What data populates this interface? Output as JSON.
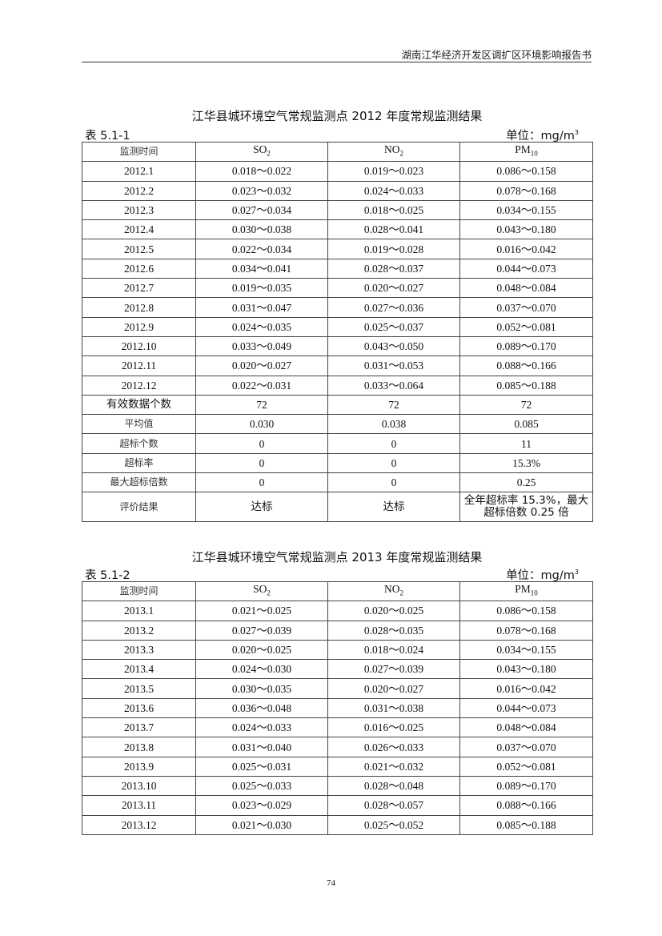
{
  "header": {
    "doc_title": "湖南江华经济开发区调扩区环境影响报告书"
  },
  "tables": [
    {
      "title": "江华县城环境空气常规监测点 2012 年度常规监测结果",
      "number": "表 5.1-1",
      "unit_label": "单位：mg/m",
      "unit_sup": "3",
      "columns": [
        {
          "main": "监测时间",
          "sub": ""
        },
        {
          "main": "SO",
          "sub": "2"
        },
        {
          "main": "NO",
          "sub": "2"
        },
        {
          "main": "PM",
          "sub": "10"
        }
      ],
      "rows": [
        [
          "2012.1",
          "0.018～0.022",
          "0.019～0.023",
          "0.086～0.158"
        ],
        [
          "2012.2",
          "0.023～0.032",
          "0.024～0.033",
          "0.078～0.168"
        ],
        [
          "2012.3",
          "0.027～0.034",
          "0.018～0.025",
          "0.034～0.155"
        ],
        [
          "2012.4",
          "0.030～0.038",
          "0.028～0.041",
          "0.043～0.180"
        ],
        [
          "2012.5",
          "0.022～0.034",
          "0.019～0.028",
          "0.016～0.042"
        ],
        [
          "2012.6",
          "0.034～0.041",
          "0.028～0.037",
          "0.044～0.073"
        ],
        [
          "2012.7",
          "0.019～0.035",
          "0.020～0.027",
          "0.048～0.084"
        ],
        [
          "2012.8",
          "0.031～0.047",
          "0.027～0.036",
          "0.037～0.070"
        ],
        [
          "2012.9",
          "0.024～0.035",
          "0.025～0.037",
          "0.052～0.081"
        ],
        [
          "2012.10",
          "0.033～0.049",
          "0.043～0.050",
          "0.089～0.170"
        ],
        [
          "2012.11",
          "0.020～0.027",
          "0.031～0.053",
          "0.088～0.166"
        ],
        [
          "2012.12",
          "0.022～0.031",
          "0.033～0.064",
          "0.085～0.188"
        ]
      ],
      "summary_rows": [
        [
          "有效数据个数",
          "72",
          "72",
          "72"
        ],
        [
          "平均值",
          "0.030",
          "0.038",
          "0.085"
        ],
        [
          "超标个数",
          "0",
          "0",
          "11"
        ],
        [
          "超标率",
          "0",
          "0",
          "15.3%"
        ],
        [
          "最大超标倍数",
          "0",
          "0",
          "0.25"
        ],
        [
          "评价结果",
          "达标",
          "达标",
          "全年超标率 15.3%，最大超标倍数 0.25 倍"
        ]
      ]
    },
    {
      "title": "江华县城环境空气常规监测点 2013 年度常规监测结果",
      "number": "表 5.1-2",
      "unit_label": "单位：mg/m",
      "unit_sup": "3",
      "columns": [
        {
          "main": "监测时间",
          "sub": ""
        },
        {
          "main": "SO",
          "sub": "2"
        },
        {
          "main": "NO",
          "sub": "2"
        },
        {
          "main": "PM",
          "sub": "10"
        }
      ],
      "rows": [
        [
          "2013.1",
          "0.021～0.025",
          "0.020～0.025",
          "0.086～0.158"
        ],
        [
          "2013.2",
          "0.027～0.039",
          "0.028～0.035",
          "0.078～0.168"
        ],
        [
          "2013.3",
          "0.020～0.025",
          "0.018～0.024",
          "0.034～0.155"
        ],
        [
          "2013.4",
          "0.024～0.030",
          "0.027～0.039",
          "0.043～0.180"
        ],
        [
          "2013.5",
          "0.030～0.035",
          "0.020～0.027",
          "0.016～0.042"
        ],
        [
          "2013.6",
          "0.036～0.048",
          "0.031～0.038",
          "0.044～0.073"
        ],
        [
          "2013.7",
          "0.024～0.033",
          "0.016～0.025",
          "0.048～0.084"
        ],
        [
          "2013.8",
          "0.031～0.040",
          "0.026～0.033",
          "0.037～0.070"
        ],
        [
          "2013.9",
          "0.025～0.031",
          "0.021～0.032",
          "0.052～0.081"
        ],
        [
          "2013.10",
          "0.025～0.033",
          "0.028～0.048",
          "0.089～0.170"
        ],
        [
          "2013.11",
          "0.023～0.029",
          "0.028～0.057",
          "0.088～0.166"
        ],
        [
          "2013.12",
          "0.021～0.030",
          "0.025～0.052",
          "0.085～0.188"
        ]
      ],
      "summary_rows": []
    }
  ],
  "footer": {
    "page_number": "74"
  }
}
